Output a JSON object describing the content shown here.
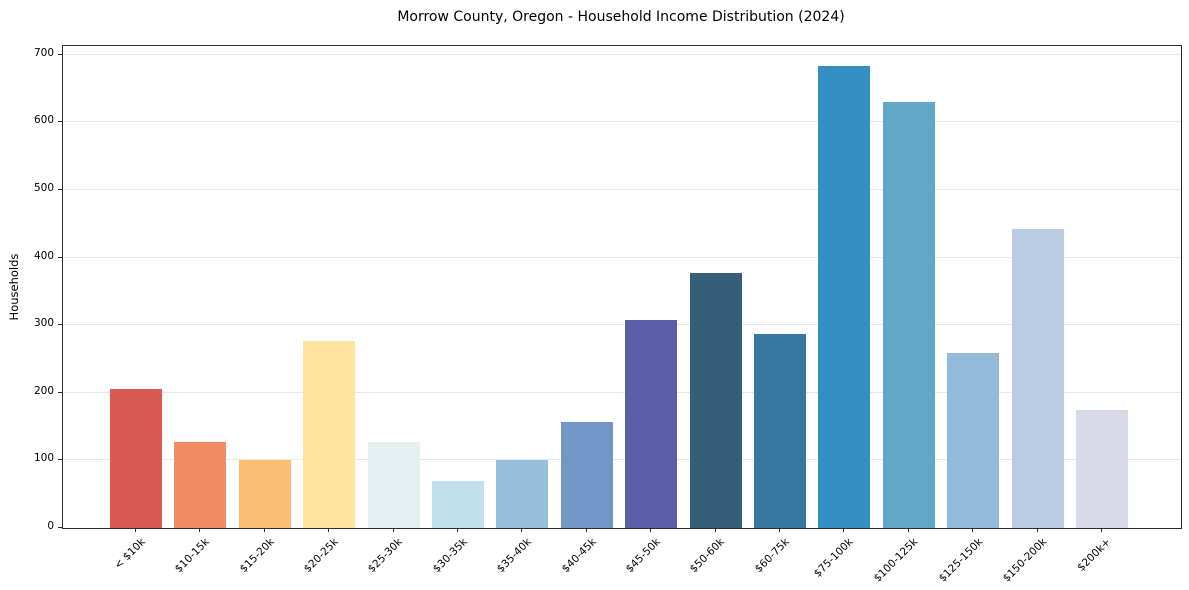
{
  "figure": {
    "title": "Morrow County, Oregon - Household Income Distribution (2024)",
    "ylabel": "Households"
  },
  "chart_data": {
    "type": "bar",
    "title": "Morrow County, Oregon - Household Income Distribution (2024)",
    "xlabel": "",
    "ylabel": "Households",
    "categories": [
      "< $10k",
      "$10-15k",
      "$15-20k",
      "$20-25k",
      "$25-30k",
      "$30-35k",
      "$35-40k",
      "$40-45k",
      "$45-50k",
      "$50-60k",
      "$60-75k",
      "$75-100k",
      "$100-125k",
      "$125-150k",
      "$150-200k",
      "$200k+"
    ],
    "values": [
      206,
      127,
      100,
      276,
      127,
      69,
      100,
      157,
      307,
      377,
      287,
      683,
      630,
      259,
      443,
      174
    ],
    "bar_colors": [
      "#d85a52",
      "#f28a64",
      "#fabd74",
      "#fde49c",
      "#e4eff1",
      "#c1dfec",
      "#96c0dc",
      "#7296c8",
      "#5c5fa8",
      "#355f78",
      "#38779f",
      "#348ec2",
      "#60a7c8",
      "#94bad9",
      "#b9cce4",
      "#d9dae8"
    ],
    "yticks": [
      0,
      100,
      200,
      300,
      400,
      500,
      600,
      700
    ],
    "ylim": [
      0,
      713
    ],
    "grid": "horizontal-only",
    "grid_color": "#e8e8e8",
    "legend": "none",
    "background_color": "#ffffff",
    "spines": "full-box",
    "x_tick_rotation_deg": 45
  }
}
